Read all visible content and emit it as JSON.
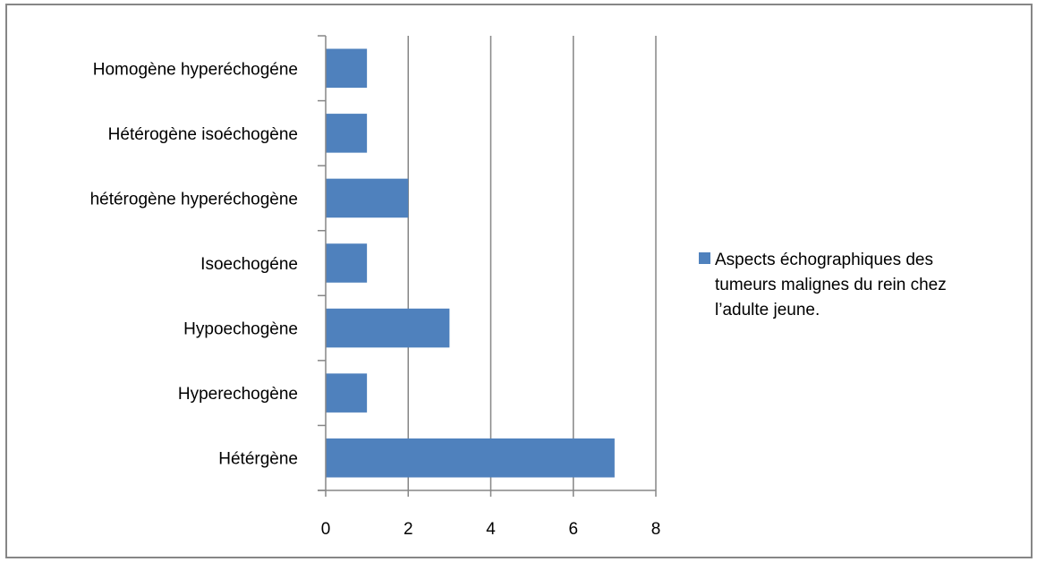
{
  "chart_data": {
    "type": "bar",
    "orientation": "horizontal",
    "title": "",
    "xlabel": "",
    "ylabel": "",
    "categories": [
      "Homogène hyperéchogéne",
      "Hétérogène isoéchogène",
      "hétérogène hyperéchogène",
      "Isoechogéne",
      "Hypoechogène",
      "Hyperechogène",
      "Hétérgène"
    ],
    "series": [
      {
        "name": "Aspects échographiques des tumeurs malignes du rein chez l’adulte  jeune.",
        "legend_lines": [
          "Aspects échographiques des",
          "tumeurs malignes du rein chez",
          "l’adulte  jeune."
        ],
        "values": [
          1,
          1,
          2,
          1,
          3,
          1,
          7
        ],
        "color": "#4f81bd"
      }
    ],
    "xlim": [
      0,
      8
    ],
    "xticks": [
      "0",
      "2",
      "4",
      "6",
      "8"
    ],
    "grid": "vertical",
    "legend_position": "right"
  }
}
